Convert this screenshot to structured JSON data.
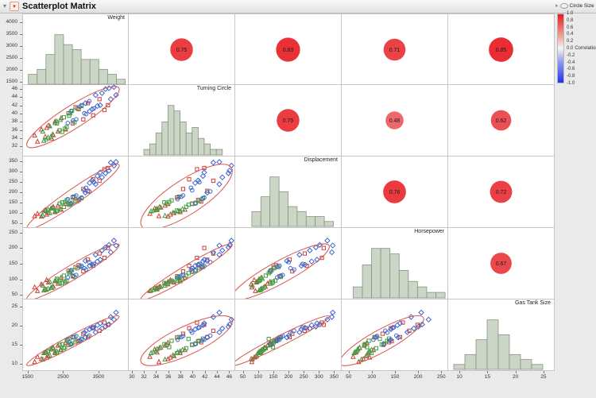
{
  "titlebar": {
    "title": "Scatterplot Matrix"
  },
  "legend": {
    "circle_size_label": "Circle Size",
    "correlation_label": "Correlation",
    "ticks": [
      "1.0",
      "0.8",
      "0.6",
      "0.4",
      "0.2",
      "0.0",
      "-0.2",
      "-0.4",
      "-0.6",
      "-0.8",
      "-1.0"
    ],
    "top_color": "#e8191f",
    "mid_color": "#f6f4f3",
    "bottom_color": "#2430e8"
  },
  "style": {
    "cell_bg": "#ffffff",
    "cell_border": "#c6c6c6",
    "hist_fill": "#ccd6c6",
    "hist_stroke": "#86937f",
    "ellipse_color": "#d8564e",
    "corr_text": "#1a1a1a",
    "axis_text": "#333333",
    "pos_color": "#e8191f",
    "neg_color": "#2430e8",
    "mid_color": "#f6f4f3"
  },
  "chart_data": {
    "type": "scatterplot_matrix",
    "variables": [
      {
        "name": "Weight",
        "axis_min": 1350,
        "axis_max": 4350,
        "y_ticks": [
          4000,
          3500,
          3000,
          2500,
          2000,
          1500
        ],
        "x_ticks": [
          1500,
          2500,
          3500
        ],
        "hist": {
          "start": 1500,
          "bin": 250,
          "counts": [
            2,
            3,
            6,
            10,
            8,
            7,
            5,
            5,
            3,
            2,
            1
          ]
        }
      },
      {
        "name": "Turning Circle",
        "axis_min": 29.5,
        "axis_max": 47,
        "y_ticks": [
          46,
          44,
          42,
          40,
          38,
          36,
          34,
          32
        ],
        "x_ticks": [
          30,
          32,
          34,
          36,
          38,
          40,
          42,
          44,
          46
        ],
        "hist": {
          "start": 32,
          "bin": 1,
          "counts": [
            1,
            2,
            4,
            6,
            9,
            8,
            6,
            4,
            5,
            3,
            2,
            1,
            1
          ]
        }
      },
      {
        "name": "Displacement",
        "axis_min": 25,
        "axis_max": 375,
        "y_ticks": [
          350,
          300,
          250,
          200,
          150,
          100,
          50
        ],
        "x_ticks": [
          50,
          100,
          150,
          200,
          250,
          300,
          350
        ],
        "hist": {
          "start": 80,
          "bin": 30,
          "counts": [
            3,
            6,
            10,
            7,
            4,
            3,
            2,
            2,
            1
          ]
        }
      },
      {
        "name": "Horsepower",
        "axis_min": 35,
        "axis_max": 265,
        "y_ticks": [
          250,
          200,
          150,
          100,
          50
        ],
        "x_ticks": [
          50,
          100,
          150,
          200,
          250
        ],
        "hist": {
          "start": 60,
          "bin": 20,
          "counts": [
            2,
            6,
            9,
            9,
            8,
            5,
            3,
            2,
            1,
            1
          ]
        }
      },
      {
        "name": "Gas Tank Size",
        "axis_min": 8,
        "axis_max": 27,
        "y_ticks": [
          25,
          20,
          15,
          10
        ],
        "x_ticks": [
          10,
          15,
          20,
          25
        ],
        "hist": {
          "start": 9,
          "bin": 2,
          "counts": [
            1,
            3,
            6,
            10,
            7,
            3,
            2,
            1
          ]
        }
      }
    ],
    "correlations": [
      [
        1.0,
        0.75,
        0.83,
        0.71,
        0.85
      ],
      [
        0.75,
        1.0,
        0.75,
        0.48,
        0.62
      ],
      [
        0.83,
        0.75,
        1.0,
        0.76,
        0.72
      ],
      [
        0.71,
        0.48,
        0.76,
        1.0,
        0.67
      ],
      [
        0.85,
        0.62,
        0.72,
        0.67,
        1.0
      ]
    ],
    "groups": [
      {
        "color": "#cf4037",
        "marker": "triangle"
      },
      {
        "color": "#cf4037",
        "marker": "square"
      },
      {
        "color": "#3f9e44",
        "marker": "square"
      },
      {
        "color": "#3f9e44",
        "marker": "triangle"
      },
      {
        "color": "#3b66cf",
        "marker": "diamond"
      },
      {
        "color": "#3b66cf",
        "marker": "circle"
      }
    ],
    "observations": [
      [
        1680,
        34.5,
        80,
        72,
        10.2,
        0
      ],
      [
        1760,
        33.0,
        92,
        60,
        11.6,
        0
      ],
      [
        1870,
        36.0,
        78,
        82,
        11.0,
        0
      ],
      [
        1980,
        34.2,
        110,
        66,
        12.8,
        0
      ],
      [
        2070,
        37.0,
        95,
        88,
        11.8,
        0
      ],
      [
        2160,
        33.8,
        118,
        70,
        13.6,
        0
      ],
      [
        2260,
        38.0,
        100,
        92,
        12.6,
        0
      ],
      [
        2340,
        35.5,
        132,
        84,
        14.6,
        0
      ],
      [
        2430,
        38.8,
        112,
        104,
        13.4,
        0
      ],
      [
        2210,
        34.6,
        125,
        74,
        14.0,
        0
      ],
      [
        2020,
        36.4,
        88,
        96,
        11.4,
        0
      ],
      [
        2560,
        36.0,
        140,
        90,
        15.4,
        0
      ],
      [
        2640,
        40.0,
        142,
        126,
        14.8,
        1
      ],
      [
        2760,
        37.5,
        172,
        108,
        16.8,
        1
      ],
      [
        2930,
        41.0,
        160,
        144,
        15.8,
        1
      ],
      [
        3060,
        38.5,
        214,
        124,
        17.8,
        1
      ],
      [
        3190,
        42.5,
        205,
        162,
        16.9,
        1
      ],
      [
        3340,
        39.5,
        262,
        142,
        19.3,
        1
      ],
      [
        3520,
        43.5,
        255,
        182,
        18.6,
        1
      ],
      [
        3660,
        40.8,
        312,
        168,
        20.8,
        1
      ],
      [
        2840,
        41.5,
        152,
        138,
        15.5,
        1
      ],
      [
        3760,
        42.0,
        318,
        200,
        20.2,
        1
      ],
      [
        2310,
        37.5,
        108,
        100,
        12.6,
        2
      ],
      [
        2390,
        35.8,
        142,
        84,
        14.8,
        2
      ],
      [
        2510,
        39.0,
        126,
        110,
        13.9,
        2
      ],
      [
        2590,
        36.6,
        158,
        94,
        15.9,
        2
      ],
      [
        2690,
        40.0,
        140,
        122,
        14.9,
        2
      ],
      [
        2810,
        37.8,
        176,
        106,
        16.9,
        2
      ],
      [
        2890,
        41.2,
        154,
        134,
        15.9,
        2
      ],
      [
        2660,
        39.4,
        136,
        118,
        16.4,
        2
      ],
      [
        2540,
        36.2,
        150,
        90,
        14.2,
        2
      ],
      [
        2740,
        40.6,
        146,
        128,
        15.2,
        2
      ],
      [
        2460,
        35.4,
        148,
        86,
        15.0,
        2
      ],
      [
        3010,
        41.8,
        168,
        138,
        16.5,
        2
      ],
      [
        1910,
        35.5,
        82,
        78,
        10.9,
        3
      ],
      [
        2010,
        33.6,
        108,
        64,
        12.9,
        3
      ],
      [
        2110,
        36.8,
        96,
        90,
        12.0,
        3
      ],
      [
        2190,
        34.8,
        122,
        74,
        14.1,
        3
      ],
      [
        2310,
        38.0,
        106,
        96,
        13.1,
        3
      ],
      [
        2140,
        34.2,
        118,
        70,
        13.7,
        3
      ],
      [
        2260,
        37.6,
        104,
        94,
        12.9,
        3
      ],
      [
        2060,
        34.0,
        112,
        68,
        13.2,
        3
      ],
      [
        2410,
        38.4,
        115,
        100,
        13.5,
        3
      ],
      [
        1940,
        33.2,
        104,
        62,
        12.6,
        3
      ],
      [
        3120,
        42.5,
        196,
        158,
        16.8,
        4
      ],
      [
        3240,
        40.5,
        244,
        142,
        19.0,
        4
      ],
      [
        3410,
        44.5,
        238,
        178,
        18.2,
        4
      ],
      [
        3540,
        42.0,
        296,
        162,
        20.6,
        4
      ],
      [
        3690,
        46.0,
        292,
        202,
        19.7,
        4
      ],
      [
        3840,
        43.5,
        345,
        186,
        22.3,
        4
      ],
      [
        3930,
        46.5,
        330,
        224,
        21.6,
        4
      ],
      [
        3310,
        41.0,
        256,
        146,
        19.4,
        4
      ],
      [
        3590,
        45.0,
        272,
        192,
        19.2,
        4
      ],
      [
        3990,
        44.5,
        348,
        208,
        23.5,
        4
      ],
      [
        3460,
        41.8,
        278,
        156,
        20.1,
        4
      ],
      [
        3790,
        46.2,
        305,
        210,
        20.3,
        4
      ],
      [
        2710,
        40.5,
        142,
        126,
        15.0,
        5
      ],
      [
        2860,
        38.5,
        182,
        112,
        17.2,
        5
      ],
      [
        3010,
        42.0,
        172,
        142,
        16.2,
        5
      ],
      [
        3140,
        39.8,
        220,
        130,
        18.6,
        5
      ],
      [
        2960,
        41.6,
        164,
        140,
        16.0,
        5
      ],
      [
        3090,
        40.0,
        208,
        134,
        18.1,
        5
      ],
      [
        2770,
        38.2,
        176,
        110,
        16.9,
        5
      ],
      [
        3230,
        43.0,
        202,
        154,
        17.3,
        5
      ],
      [
        2620,
        37.6,
        164,
        104,
        16.2,
        5
      ],
      [
        3360,
        41.2,
        248,
        148,
        19.5,
        5
      ]
    ]
  }
}
